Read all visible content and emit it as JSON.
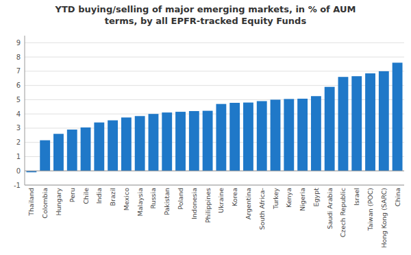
{
  "chart_data": {
    "type": "bar",
    "title": "YTD buying/selling of major emerging markets, in % of AUM\nterms, by all EPFR-tracked Equity Funds",
    "categories": [
      "Thailand",
      "Colombia",
      "Hungary",
      "Peru",
      "Chile",
      "India",
      "Brazil",
      "Mexico",
      "Malaysia",
      "Russia",
      "Pakistan",
      "Poland",
      "Indonesia",
      "Philippines",
      "Ukraine",
      "Korea",
      "Argentina",
      "South Africa-",
      "Turkey",
      "Kenya",
      "Nigeria",
      "Egypt",
      "Saudi Arabia",
      "Czech Republic",
      "Israel",
      "Taiwan (POC)",
      "Hong Kong (SARC)",
      "China"
    ],
    "values": [
      -0.1,
      2.15,
      2.6,
      2.9,
      3.05,
      3.4,
      3.55,
      3.75,
      3.85,
      4.0,
      4.1,
      4.15,
      4.2,
      4.22,
      4.7,
      4.78,
      4.8,
      4.9,
      5.0,
      5.05,
      5.07,
      5.25,
      5.9,
      6.6,
      6.65,
      6.85,
      7.0,
      7.6
    ],
    "color": "#1F78C8",
    "ylim": [
      -1,
      9.5
    ],
    "yticks": [
      -1,
      0,
      1,
      2,
      3,
      4,
      5,
      6,
      7,
      8,
      9
    ],
    "grid": true
  }
}
